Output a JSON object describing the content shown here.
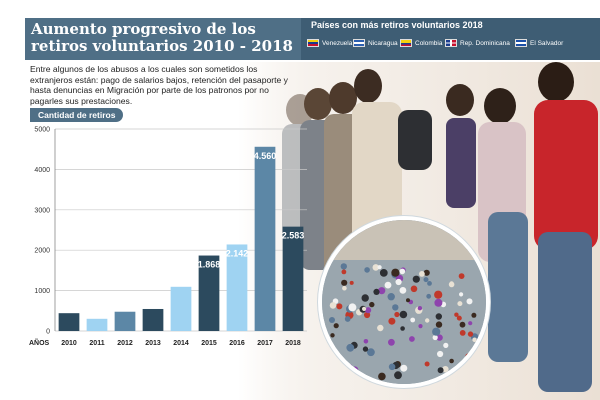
{
  "header": {
    "title": "Aumento progresivo de los retiros voluntarios 2010 - 2018",
    "legend_title": "Países con más retiros voluntarios 2018",
    "countries": [
      {
        "name": "Venezuela",
        "flag": "venezuela"
      },
      {
        "name": "Nicaragua",
        "flag": "nicaragua"
      },
      {
        "name": "Colombia",
        "flag": "colombia"
      },
      {
        "name": "Rep. Dominicana",
        "flag": "dominican-republic"
      },
      {
        "name": "El Salvador",
        "flag": "el-salvador"
      }
    ]
  },
  "intro": "Entre algunos de los abusos a los cuales son sometidos los extranjeros están: pago de salarios bajos, retención del pasaporte y hasta denuncias en Migración por parte de los patronos por no pagarles sus prestaciones.",
  "colors": {
    "header": "#4f6f86",
    "legend_bg": "#3e5d74",
    "bar_dark": "#2c4a5e",
    "bar_light": "#9fd3f2",
    "bar_mid": "#5c87a6",
    "grid": "#c8c8c8"
  },
  "chart_data": {
    "type": "bar",
    "title": "Cantidad de retiros",
    "xlabel": "AÑOS",
    "categories": [
      "2010",
      "2011",
      "2012",
      "2013",
      "2014",
      "2015",
      "2016",
      "2017",
      "2018"
    ],
    "values": [
      441,
      302,
      477,
      545,
      1094,
      1868,
      2142,
      4560,
      2583
    ],
    "value_labels": [
      "441",
      "302",
      "477",
      "545",
      "1.094",
      "1.868",
      "2.142",
      "4.560",
      "2.583"
    ],
    "bar_tones": [
      "dark",
      "light",
      "mid",
      "dark",
      "light",
      "dark",
      "light",
      "mid",
      "dark"
    ],
    "ylim": [
      0,
      5000
    ],
    "yticks": [
      0,
      1000,
      2000,
      3000,
      4000,
      5000
    ],
    "grid": true
  }
}
